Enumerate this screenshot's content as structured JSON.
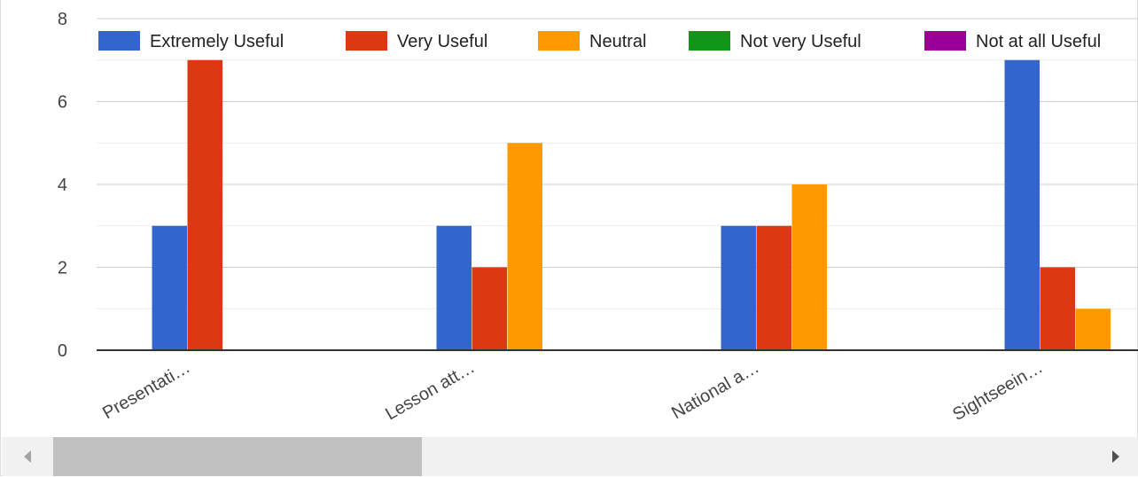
{
  "chart_data": {
    "type": "bar",
    "categories": [
      "Presentati…",
      "Lesson att…",
      "National a…",
      "Sightseein…"
    ],
    "series": [
      {
        "name": "Extremely Useful",
        "color": "#3366cc",
        "values": [
          3,
          3,
          3,
          7
        ]
      },
      {
        "name": "Very Useful",
        "color": "#dc3912",
        "values": [
          7,
          2,
          3,
          2
        ]
      },
      {
        "name": "Neutral",
        "color": "#ff9900",
        "values": [
          0,
          5,
          4,
          1
        ]
      },
      {
        "name": "Not very Useful",
        "color": "#109618",
        "values": [
          0,
          0,
          0,
          0
        ]
      },
      {
        "name": "Not at all Useful",
        "color": "#990099",
        "values": [
          0,
          0,
          0,
          0
        ]
      }
    ],
    "y_ticks": [
      0,
      2,
      4,
      6,
      8
    ],
    "ylim": [
      0,
      8
    ],
    "minor_gridlines": true,
    "legend_position": "top",
    "title": "",
    "xlabel": "",
    "ylabel": ""
  },
  "scrollbar": {
    "left_icon": "arrow-left-icon",
    "right_icon": "arrow-right-icon"
  }
}
